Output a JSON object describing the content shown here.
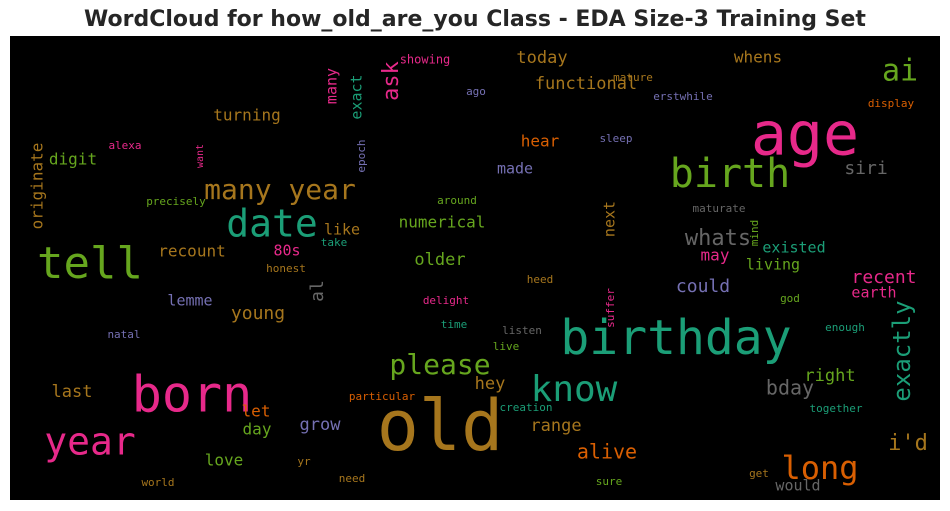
{
  "title": "WordCloud for how_old_are_you Class - EDA Size-3 Training Set",
  "colors": {
    "pink": "#e7298a",
    "teal": "#1b9e77",
    "green": "#66a61e",
    "gold": "#a6761d",
    "orange": "#d95f02",
    "purple": "#7570b3",
    "gray": "#666666"
  },
  "chart_data": {
    "type": "wordcloud",
    "words": [
      {
        "text": "old",
        "color": "gold"
      },
      {
        "text": "age",
        "color": "pink"
      },
      {
        "text": "born",
        "color": "pink"
      },
      {
        "text": "birthday",
        "color": "teal"
      },
      {
        "text": "birth",
        "color": "green"
      },
      {
        "text": "tell",
        "color": "green"
      },
      {
        "text": "year",
        "color": "pink"
      },
      {
        "text": "date",
        "color": "teal"
      },
      {
        "text": "know",
        "color": "teal"
      },
      {
        "text": "many year",
        "color": "gold"
      },
      {
        "text": "long",
        "color": "orange"
      },
      {
        "text": "ai",
        "color": "green"
      },
      {
        "text": "please",
        "color": "green"
      },
      {
        "text": "exactly",
        "color": "teal"
      },
      {
        "text": "ask",
        "color": "pink"
      },
      {
        "text": "whats",
        "color": "gray"
      },
      {
        "text": "i'd",
        "color": "gold"
      },
      {
        "text": "alive",
        "color": "orange"
      },
      {
        "text": "bday",
        "color": "gray"
      },
      {
        "text": "recent",
        "color": "pink"
      },
      {
        "text": "siri",
        "color": "gray"
      },
      {
        "text": "could",
        "color": "purple"
      },
      {
        "text": "functional",
        "color": "gold"
      },
      {
        "text": "today",
        "color": "gold"
      },
      {
        "text": "whens",
        "color": "gold"
      },
      {
        "text": "young",
        "color": "gold"
      },
      {
        "text": "older",
        "color": "green"
      },
      {
        "text": "right",
        "color": "green"
      },
      {
        "text": "range",
        "color": "gold"
      },
      {
        "text": "last",
        "color": "gold"
      },
      {
        "text": "hey",
        "color": "gold"
      },
      {
        "text": "numerical",
        "color": "green"
      },
      {
        "text": "turning",
        "color": "gold"
      },
      {
        "text": "originate",
        "color": "gold"
      },
      {
        "text": "digit",
        "color": "green"
      },
      {
        "text": "recount",
        "color": "gold"
      },
      {
        "text": "hear",
        "color": "orange"
      },
      {
        "text": "made",
        "color": "purple"
      },
      {
        "text": "may",
        "color": "pink"
      },
      {
        "text": "let",
        "color": "orange"
      },
      {
        "text": "day",
        "color": "green"
      },
      {
        "text": "grow",
        "color": "purple"
      },
      {
        "text": "love",
        "color": "green"
      },
      {
        "text": "existed",
        "color": "teal"
      },
      {
        "text": "living",
        "color": "green"
      },
      {
        "text": "earth",
        "color": "pink"
      },
      {
        "text": "like",
        "color": "gold"
      },
      {
        "text": "lemme",
        "color": "purple"
      },
      {
        "text": "al",
        "color": "gray"
      },
      {
        "text": "80s",
        "color": "pink"
      },
      {
        "text": "many",
        "color": "pink"
      },
      {
        "text": "exact",
        "color": "teal"
      },
      {
        "text": "next",
        "color": "gold"
      },
      {
        "text": "would",
        "color": "gray"
      },
      {
        "text": "showing",
        "color": "pink"
      },
      {
        "text": "mature",
        "color": "gold"
      },
      {
        "text": "ago",
        "color": "purple"
      },
      {
        "text": "erstwhile",
        "color": "purple"
      },
      {
        "text": "display",
        "color": "orange"
      },
      {
        "text": "alexa",
        "color": "pink"
      },
      {
        "text": "want",
        "color": "pink"
      },
      {
        "text": "epoch",
        "color": "purple"
      },
      {
        "text": "sleep",
        "color": "purple"
      },
      {
        "text": "precisely",
        "color": "green"
      },
      {
        "text": "around",
        "color": "green"
      },
      {
        "text": "maturate",
        "color": "gray"
      },
      {
        "text": "mind",
        "color": "green"
      },
      {
        "text": "take",
        "color": "teal"
      },
      {
        "text": "honest",
        "color": "gold"
      },
      {
        "text": "heed",
        "color": "gold"
      },
      {
        "text": "god",
        "color": "green"
      },
      {
        "text": "delight",
        "color": "pink"
      },
      {
        "text": "suffer",
        "color": "pink"
      },
      {
        "text": "enough",
        "color": "teal"
      },
      {
        "text": "natal",
        "color": "purple"
      },
      {
        "text": "time",
        "color": "teal"
      },
      {
        "text": "listen",
        "color": "gray"
      },
      {
        "text": "live",
        "color": "green"
      },
      {
        "text": "particular",
        "color": "orange"
      },
      {
        "text": "creation",
        "color": "teal"
      },
      {
        "text": "together",
        "color": "teal"
      },
      {
        "text": "world",
        "color": "gold"
      },
      {
        "text": "yr",
        "color": "gold"
      },
      {
        "text": "need",
        "color": "gold"
      },
      {
        "text": "sure",
        "color": "green"
      },
      {
        "text": "get",
        "color": "gold"
      }
    ]
  }
}
